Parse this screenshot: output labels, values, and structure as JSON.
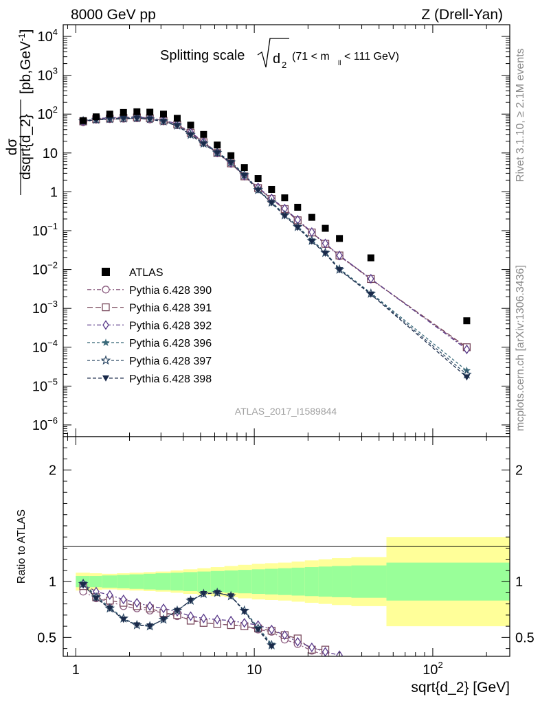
{
  "header": {
    "left": "8000 GeV pp",
    "right": "Z (Drell-Yan)"
  },
  "side_labels": {
    "rivet": "Rivet 3.1.10, ≥ 2.1M events",
    "mcplots": "mcplots.cern.ch [arXiv:1306.3436]"
  },
  "main_plot": {
    "title_main": "Splitting scale",
    "title_radicand": "d",
    "title_radicand_sub": "2",
    "title_range_a": "(71 < m",
    "title_range_sub": "ll",
    "title_range_b": " < 111 GeV)",
    "watermark": "ATLAS_2017_I1589844",
    "ylabel_num": "dσ",
    "ylabel_den": "dsqrt{d_2}",
    "ylabel_unit_a": "[pb,GeV",
    "ylabel_unit_sup": "-1",
    "ylabel_unit_b": "]"
  },
  "ratio_plot": {
    "ylabel": "Ratio to ATLAS",
    "xlabel": "sqrt{d_2} [GeV]"
  },
  "colors": {
    "data": "#000000",
    "p390": "#8a5a7e",
    "p391": "#7a4a5e",
    "p392": "#5a3a8a",
    "p396": "#3a6a7a",
    "p397": "#2e4a66",
    "p398": "#1a2a4a",
    "band_inner": "#99ff99",
    "band_outer": "#ffff99"
  },
  "chart_data": [
    {
      "type": "scatter",
      "xscale": "log",
      "yscale": "log",
      "xlim": [
        0.85,
        270
      ],
      "ylim": [
        5e-07,
        20000
      ],
      "x_ticks": [
        {
          "value": 1,
          "label": "1"
        },
        {
          "value": 10,
          "label": "10"
        },
        {
          "value": 100,
          "label": "10",
          "sup": "2"
        }
      ],
      "y_ticks": [
        {
          "value": 1e-06,
          "base": "10",
          "sup": "−6"
        },
        {
          "value": 1e-05,
          "base": "10",
          "sup": "−5"
        },
        {
          "value": 0.0001,
          "base": "10",
          "sup": "−4"
        },
        {
          "value": 0.001,
          "base": "10",
          "sup": "−3"
        },
        {
          "value": 0.01,
          "base": "10",
          "sup": "−2"
        },
        {
          "value": 0.1,
          "base": "10",
          "sup": "−1"
        },
        {
          "value": 1,
          "base": "1",
          "sup": ""
        },
        {
          "value": 10,
          "base": "10",
          "sup": ""
        },
        {
          "value": 100,
          "base": "10",
          "sup": "2"
        },
        {
          "value": 1000,
          "base": "10",
          "sup": "3"
        },
        {
          "value": 10000,
          "base": "10",
          "sup": "4"
        }
      ],
      "legend_position": "middle-left",
      "data": {
        "name": "ATLAS",
        "x": [
          1.1,
          1.3,
          1.55,
          1.85,
          2.2,
          2.6,
          3.1,
          3.7,
          4.4,
          5.2,
          6.2,
          7.4,
          8.8,
          10.5,
          12.5,
          14.8,
          17.5,
          21,
          25,
          30,
          45,
          155
        ],
        "y": [
          68,
          85,
          100,
          110,
          115,
          112,
          100,
          78,
          52,
          30,
          16,
          8.5,
          4.2,
          2.2,
          1.15,
          0.7,
          0.4,
          0.22,
          0.115,
          0.063,
          0.02,
          0.00048
        ]
      },
      "series": [
        {
          "name": "Pythia 6.428 390",
          "marker": "circle-open",
          "dash": "6 3 2 3",
          "x": [
            1.1,
            1.3,
            1.55,
            1.85,
            2.2,
            2.6,
            3.1,
            3.7,
            4.4,
            5.2,
            6.2,
            7.4,
            8.8,
            10.5,
            12.5,
            14.8,
            17.5,
            21,
            25,
            30,
            45,
            155
          ],
          "y": [
            62,
            72,
            74,
            76,
            78,
            73,
            65,
            52,
            32,
            18.5,
            9.8,
            5.3,
            2.5,
            1.25,
            0.65,
            0.35,
            0.18,
            0.088,
            0.045,
            0.022,
            0.0056,
            9.5e-05
          ]
        },
        {
          "name": "Pythia 6.428 391",
          "marker": "square-open",
          "dash": "8 4",
          "x": [
            1.1,
            1.3,
            1.55,
            1.85,
            2.2,
            2.6,
            3.1,
            3.7,
            4.4,
            5.2,
            6.2,
            7.4,
            8.8,
            10.5,
            12.5,
            14.8,
            17.5,
            21,
            25,
            30,
            45,
            155
          ],
          "y": [
            65,
            74,
            77,
            80,
            82,
            78,
            68,
            54,
            33,
            19,
            10,
            5.4,
            2.5,
            1.25,
            0.66,
            0.36,
            0.185,
            0.09,
            0.046,
            0.023,
            0.0057,
            0.0001
          ]
        },
        {
          "name": "Pythia 6.428 392",
          "marker": "diamond-open",
          "dash": "6 3 2 3",
          "x": [
            1.1,
            1.3,
            1.55,
            1.85,
            2.2,
            2.6,
            3.1,
            3.7,
            4.4,
            5.2,
            6.2,
            7.4,
            8.8,
            10.5,
            12.5,
            14.8,
            17.5,
            21,
            25,
            30,
            45,
            155
          ],
          "y": [
            66,
            77,
            80,
            83,
            85,
            80,
            70,
            56,
            34,
            19.5,
            10.3,
            5.5,
            2.6,
            1.3,
            0.68,
            0.37,
            0.19,
            0.092,
            0.047,
            0.023,
            0.0058,
            8.8e-05
          ]
        },
        {
          "name": "Pythia 6.428 396",
          "marker": "star-filled",
          "dash": "4 3",
          "x": [
            1.1,
            1.3,
            1.55,
            1.85,
            2.2,
            2.6,
            3.1,
            3.7,
            4.4,
            5.2,
            6.2,
            7.4,
            8.8,
            10.5,
            12.5,
            14.8,
            17.5,
            21,
            25,
            30,
            45,
            155
          ],
          "y": [
            67,
            73,
            76,
            78,
            80,
            76,
            66,
            52,
            30,
            18,
            10.5,
            6.0,
            2.8,
            1.15,
            0.55,
            0.26,
            0.13,
            0.058,
            0.028,
            0.0105,
            0.0025,
            2.5e-05
          ]
        },
        {
          "name": "Pythia 6.428 397",
          "marker": "star-open",
          "dash": "4 3",
          "x": [
            1.1,
            1.3,
            1.55,
            1.85,
            2.2,
            2.6,
            3.1,
            3.7,
            4.4,
            5.2,
            6.2,
            7.4,
            8.8,
            10.5,
            12.5,
            14.8,
            17.5,
            21,
            25,
            30,
            45,
            155
          ],
          "y": [
            66,
            72,
            75,
            77,
            79,
            75,
            65,
            51,
            29.5,
            17.5,
            10.2,
            5.8,
            2.7,
            1.12,
            0.53,
            0.25,
            0.125,
            0.055,
            0.027,
            0.01,
            0.0024,
            2e-05
          ]
        },
        {
          "name": "Pythia 6.428 398",
          "marker": "triangle-down-filled",
          "dash": "5 3",
          "x": [
            1.1,
            1.3,
            1.55,
            1.85,
            2.2,
            2.6,
            3.1,
            3.7,
            4.4,
            5.2,
            6.2,
            7.4,
            8.8,
            10.5,
            12.5,
            14.8,
            17.5,
            21,
            25,
            30,
            45,
            155
          ],
          "y": [
            66,
            71,
            74,
            76,
            78,
            74,
            64,
            50,
            29,
            17,
            10,
            5.6,
            2.6,
            1.1,
            0.52,
            0.24,
            0.12,
            0.053,
            0.026,
            0.0098,
            0.0023,
            1.7e-05
          ]
        }
      ]
    },
    {
      "type": "line",
      "xscale": "log",
      "xlim": [
        0.85,
        270
      ],
      "ylim": [
        0.33,
        2.3
      ],
      "y_ticks": [
        {
          "value": 0.5,
          "label": "0.5"
        },
        {
          "value": 1,
          "label": "1"
        },
        {
          "value": 2,
          "label": "2"
        }
      ],
      "bands": {
        "edges": [
          1.0,
          1.2,
          1.4,
          1.7,
          2.0,
          2.4,
          2.8,
          3.4,
          4.0,
          4.8,
          5.7,
          6.8,
          8.1,
          9.7,
          11.5,
          13.6,
          16.2,
          19.2,
          22.9,
          27.2,
          35,
          55,
          270
        ],
        "inner": [
          0.05,
          0.05,
          0.055,
          0.06,
          0.065,
          0.07,
          0.075,
          0.08,
          0.085,
          0.09,
          0.095,
          0.1,
          0.105,
          0.11,
          0.115,
          0.12,
          0.125,
          0.13,
          0.135,
          0.14,
          0.145,
          0.17
        ],
        "outer": [
          0.08,
          0.075,
          0.07,
          0.075,
          0.08,
          0.085,
          0.09,
          0.1,
          0.11,
          0.12,
          0.13,
          0.14,
          0.15,
          0.16,
          0.165,
          0.17,
          0.18,
          0.19,
          0.2,
          0.21,
          0.22,
          0.4
        ]
      },
      "series": [
        {
          "name": "Pythia 6.428 390",
          "x": [
            1.1,
            1.3,
            1.55,
            1.85,
            2.2,
            2.6,
            3.1,
            3.7,
            4.4,
            5.2,
            6.2,
            7.4,
            8.8,
            10.5,
            12.5,
            14.8,
            17.5,
            21,
            25
          ],
          "y": [
            0.91,
            0.85,
            0.82,
            0.78,
            0.76,
            0.74,
            0.72,
            0.69,
            0.66,
            0.63,
            0.62,
            0.61,
            0.6,
            0.57,
            0.55,
            0.48,
            0.44,
            0.38,
            0.34
          ]
        },
        {
          "name": "Pythia 6.428 391",
          "x": [
            1.1,
            1.3,
            1.55,
            1.85,
            2.2,
            2.6,
            3.1,
            3.7,
            4.4,
            5.2,
            6.2,
            7.4,
            8.8,
            10.5,
            12.5,
            14.8,
            17.5,
            21,
            25
          ],
          "y": [
            0.96,
            0.86,
            0.83,
            0.81,
            0.78,
            0.76,
            0.72,
            0.7,
            0.65,
            0.63,
            0.62,
            0.61,
            0.6,
            0.58,
            0.56,
            0.52,
            0.49,
            0.39,
            0.39
          ]
        },
        {
          "name": "Pythia 6.428 392",
          "x": [
            1.1,
            1.3,
            1.55,
            1.85,
            2.2,
            2.6,
            3.1,
            3.7,
            4.4,
            5.2,
            6.2,
            7.4,
            8.8,
            10.5,
            12.5,
            14.8,
            17.5,
            21,
            25,
            30
          ],
          "y": [
            0.98,
            0.91,
            0.88,
            0.84,
            0.81,
            0.78,
            0.76,
            0.73,
            0.69,
            0.67,
            0.66,
            0.65,
            0.63,
            0.61,
            0.57,
            0.52,
            0.46,
            0.41,
            0.37,
            0.34
          ]
        },
        {
          "name": "Pythia 6.428 396",
          "x": [
            1.1,
            1.3,
            1.55,
            1.85,
            2.2,
            2.6,
            3.1,
            3.7,
            4.4,
            5.2,
            6.2,
            7.4,
            8.8,
            10.5,
            12.5
          ],
          "y": [
            0.99,
            0.87,
            0.77,
            0.67,
            0.61,
            0.6,
            0.66,
            0.74,
            0.83,
            0.89,
            0.9,
            0.87,
            0.74,
            0.59,
            0.44
          ]
        },
        {
          "name": "Pythia 6.428 397",
          "x": [
            1.1,
            1.3,
            1.55,
            1.85,
            2.2,
            2.6,
            3.1,
            3.7,
            4.4,
            5.2,
            6.2,
            7.4,
            8.8,
            10.5,
            12.5
          ],
          "y": [
            0.98,
            0.86,
            0.76,
            0.67,
            0.61,
            0.6,
            0.66,
            0.74,
            0.83,
            0.89,
            0.9,
            0.87,
            0.74,
            0.58,
            0.43
          ]
        },
        {
          "name": "Pythia 6.428 398",
          "x": [
            1.1,
            1.3,
            1.55,
            1.85,
            2.2,
            2.6,
            3.1,
            3.7,
            4.4,
            5.2,
            6.2,
            7.4,
            8.8,
            10.5,
            12.5
          ],
          "y": [
            0.97,
            0.85,
            0.76,
            0.66,
            0.61,
            0.6,
            0.66,
            0.74,
            0.83,
            0.89,
            0.9,
            0.87,
            0.73,
            0.57,
            0.42
          ]
        }
      ]
    }
  ]
}
